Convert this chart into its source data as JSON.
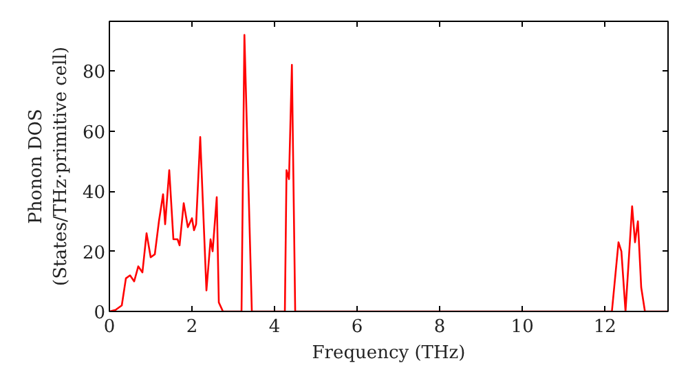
{
  "chart_data": {
    "type": "line",
    "xlabel": "Frequency (THz)",
    "ylabel": "Phonon DOS\n(States/THz·primitive cell)",
    "xlim": [
      0,
      13.53
    ],
    "ylim": [
      0,
      96.5
    ],
    "xticks": [
      0,
      2,
      4,
      6,
      8,
      10,
      12
    ],
    "yticks": [
      0,
      20,
      40,
      60,
      80
    ],
    "grid": false,
    "series": [
      {
        "color": "#ff0000",
        "x": [
          0,
          0.15,
          0.3,
          0.4,
          0.5,
          0.6,
          0.7,
          0.8,
          0.9,
          1.0,
          1.1,
          1.2,
          1.3,
          1.35,
          1.45,
          1.55,
          1.65,
          1.7,
          1.8,
          1.9,
          2.0,
          2.05,
          2.1,
          2.2,
          2.3,
          2.35,
          2.45,
          2.5,
          2.6,
          2.65,
          2.75,
          3.2,
          3.27,
          3.45,
          4.25,
          4.29,
          4.35,
          4.42,
          4.5,
          12.17,
          12.33,
          12.4,
          12.5,
          12.66,
          12.73,
          12.8,
          12.88,
          12.97,
          13.53
        ],
        "values": [
          0,
          0.5,
          2,
          11,
          12,
          10,
          15,
          13,
          26,
          18,
          19,
          30,
          39,
          29,
          47,
          24,
          24,
          22,
          36,
          28,
          31,
          27,
          29,
          58,
          24,
          7,
          24,
          20,
          38,
          3,
          0,
          0,
          92,
          0,
          0,
          47,
          44,
          82,
          0,
          0,
          23,
          20,
          0,
          35,
          23,
          30,
          8,
          0,
          0
        ]
      }
    ]
  }
}
